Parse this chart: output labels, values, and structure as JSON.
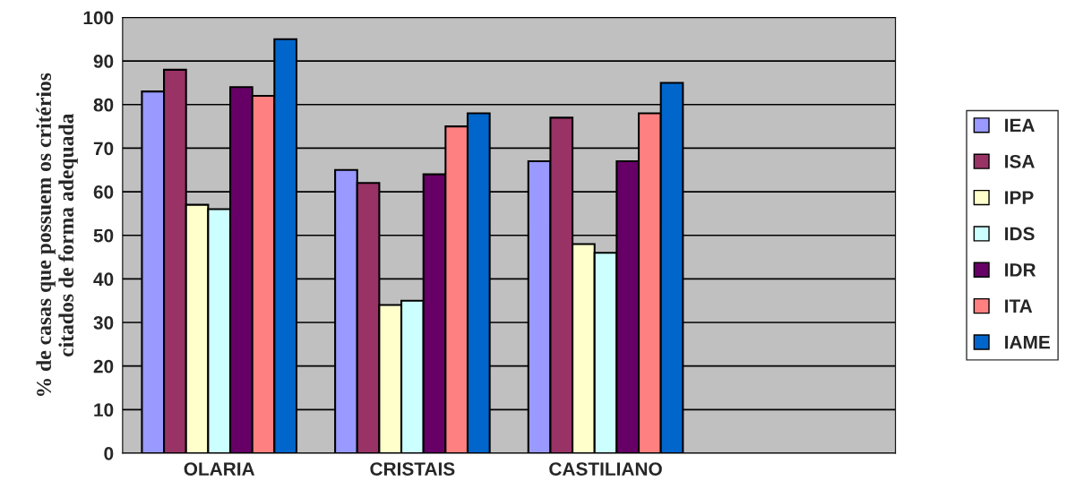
{
  "chart_data": {
    "type": "bar",
    "ylabel": "% de casas que possuem os critérios\ncitados de forma adequada",
    "categories": [
      "OLARIA",
      "CRISTAIS",
      "CASTILIANO",
      null
    ],
    "series": [
      {
        "name": "IEA",
        "color": "#9999ff",
        "values": [
          83,
          65,
          67,
          null
        ]
      },
      {
        "name": "ISA",
        "color": "#993366",
        "values": [
          88,
          62,
          77,
          null
        ]
      },
      {
        "name": "IPP",
        "color": "#ffffcc",
        "values": [
          57,
          34,
          48,
          null
        ]
      },
      {
        "name": "IDS",
        "color": "#ccffff",
        "values": [
          56,
          35,
          46,
          null
        ]
      },
      {
        "name": "IDR",
        "color": "#660066",
        "values": [
          84,
          64,
          67,
          null
        ]
      },
      {
        "name": "ITA",
        "color": "#ff8080",
        "values": [
          82,
          75,
          78,
          null
        ]
      },
      {
        "name": "IAME",
        "color": "#0066cc",
        "values": [
          95,
          78,
          85,
          null
        ]
      }
    ],
    "ylim": [
      0,
      100
    ],
    "yticks": [
      0,
      10,
      20,
      30,
      40,
      50,
      60,
      70,
      80,
      90,
      100
    ],
    "grid": "y",
    "legend": "right"
  }
}
